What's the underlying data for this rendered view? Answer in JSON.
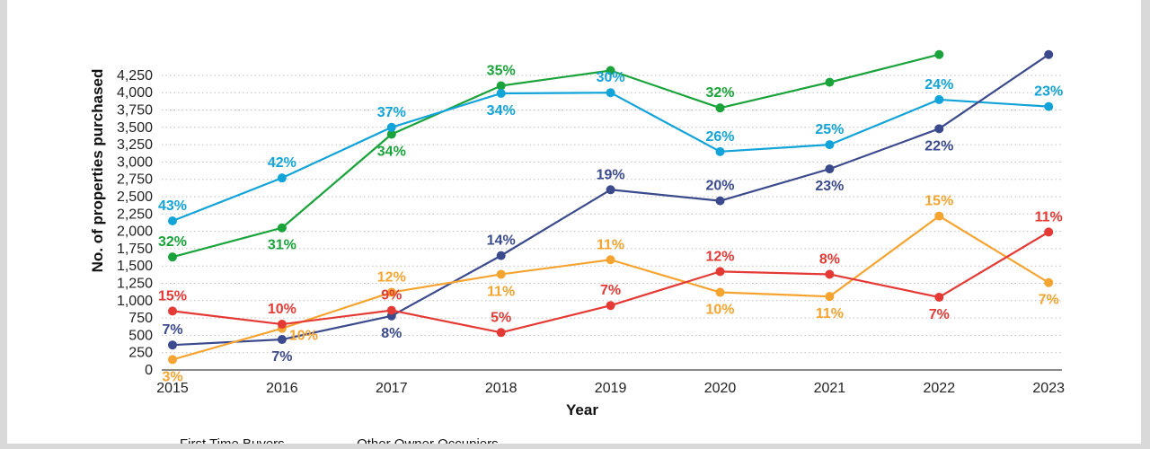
{
  "chart_data": {
    "type": "line",
    "xlabel": "Year",
    "ylabel": "No. of properties purchased",
    "categories": [
      "2015",
      "2016",
      "2017",
      "2018",
      "2019",
      "2020",
      "2021",
      "2022",
      "2023"
    ],
    "ylim": [
      0,
      4400
    ],
    "yticks": [
      0,
      250,
      500,
      750,
      1000,
      1250,
      1500,
      1750,
      2000,
      2250,
      2500,
      2750,
      3000,
      3250,
      3500,
      3750,
      4000,
      4250
    ],
    "ytick_labels": [
      "0",
      "250",
      "500",
      "750",
      "1,000",
      "1,250",
      "1,500",
      "1,750",
      "2,000",
      "2,250",
      "2,500",
      "2,750",
      "3,000",
      "3,250",
      "3,500",
      "3,750",
      "4,000",
      "4,250"
    ],
    "grid": "horizontal dotted",
    "legend_position": "bottom",
    "series": [
      {
        "name": "First Time Buyers",
        "color": "#1aa33a",
        "values": [
          1630,
          2050,
          3400,
          4100,
          4320,
          3780,
          4150,
          4550,
          null
        ],
        "labels": [
          "32%",
          "31%",
          "34%",
          "35%",
          "",
          "32%",
          "",
          "",
          ""
        ],
        "label_pos": [
          "above",
          "below",
          "below",
          "above",
          "above",
          "above",
          "above",
          "above",
          "above"
        ]
      },
      {
        "name": "Other Owner Occupiers",
        "color": "#12a3d9",
        "values": [
          2150,
          2770,
          3500,
          3990,
          4000,
          3150,
          3250,
          3900,
          3800
        ],
        "labels": [
          "43%",
          "42%",
          "37%",
          "34%",
          "30%",
          "26%",
          "25%",
          "24%",
          "23%"
        ],
        "label_pos": [
          "above",
          "above",
          "above",
          "below",
          "above",
          "above",
          "above",
          "above",
          "above"
        ]
      },
      {
        "color": "#3b4a8c",
        "values": [
          360,
          440,
          780,
          1650,
          2600,
          2440,
          2900,
          3480,
          4550
        ],
        "labels": [
          "7%",
          "7%",
          "8%",
          "14%",
          "19%",
          "20%",
          "23%",
          "22%",
          ""
        ],
        "label_pos": [
          "above",
          "below",
          "below",
          "above",
          "above",
          "above",
          "below",
          "below",
          "above"
        ]
      },
      {
        "color": "#f5a431",
        "values": [
          150,
          600,
          1120,
          1380,
          1590,
          1120,
          1060,
          2220,
          1260
        ],
        "labels": [
          "3%",
          "10%",
          "12%",
          "11%",
          "11%",
          "10%",
          "11%",
          "15%",
          "7%"
        ],
        "label_pos": [
          "below",
          "below-right",
          "above",
          "below",
          "above",
          "below",
          "below",
          "above",
          "below"
        ]
      },
      {
        "color": "#e43a35",
        "values": [
          850,
          660,
          860,
          540,
          930,
          1420,
          1380,
          1050,
          1990
        ],
        "labels": [
          "15%",
          "10%",
          "9%",
          "5%",
          "7%",
          "12%",
          "8%",
          "7%",
          "11%"
        ],
        "label_pos": [
          "above",
          "above",
          "above",
          "above",
          "above",
          "above",
          "above",
          "below",
          "above"
        ]
      }
    ]
  }
}
